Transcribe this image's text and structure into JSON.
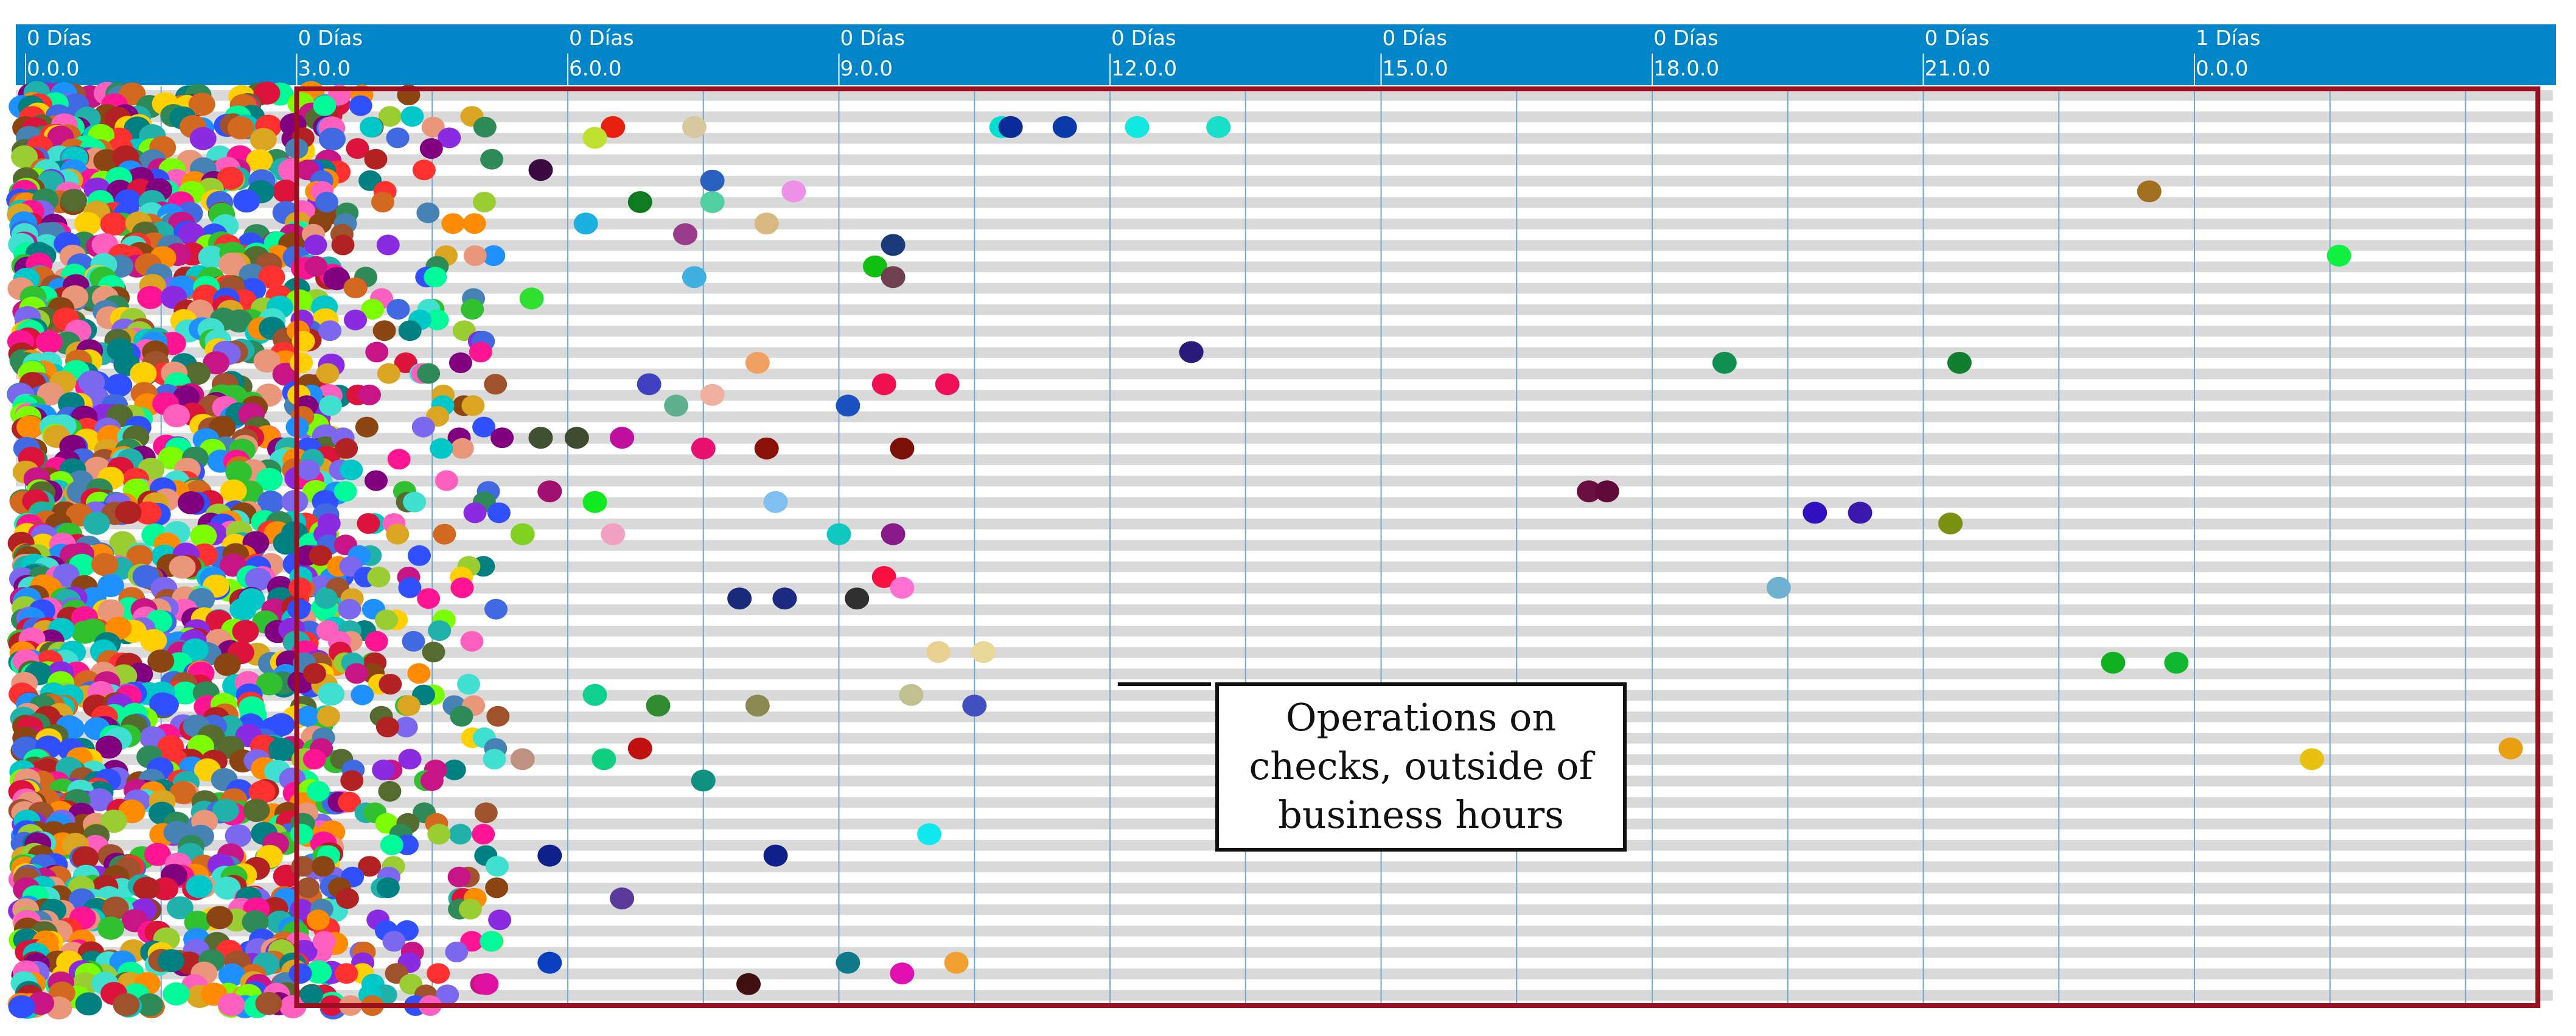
{
  "chart_data": {
    "type": "scatter",
    "title": "",
    "xlabel": "",
    "ylabel": "",
    "x_unit": "hours",
    "xlim": [
      0,
      30
    ],
    "grid": true,
    "legend": "none",
    "x_ticks": [
      {
        "value": 0,
        "day": "0 Días",
        "time": "0.0.0"
      },
      {
        "value": 3,
        "day": "0 Días",
        "time": "3.0.0"
      },
      {
        "value": 6,
        "day": "0 Días",
        "time": "6.0.0"
      },
      {
        "value": 9,
        "day": "0 Días",
        "time": "9.0.0"
      },
      {
        "value": 12,
        "day": "0 Días",
        "time": "12.0.0"
      },
      {
        "value": 15,
        "day": "0 Días",
        "time": "15.0.0"
      },
      {
        "value": 18,
        "day": "0 Días",
        "time": "18.0.0"
      },
      {
        "value": 21,
        "day": "0 Días",
        "time": "21.0.0"
      },
      {
        "value": 24,
        "day": "1 Días",
        "time": "0.0.0"
      }
    ],
    "highlight_region": {
      "from_hour": 3.0,
      "to_hour": 27.8,
      "color": "#9a1020"
    },
    "annotation": {
      "lines": [
        "Operations on",
        "checks, outside of",
        "business hours"
      ],
      "points_to_hour": 8.8
    },
    "dense_region": {
      "from_hour": 0,
      "to_hour": 3.0,
      "row_count": 62,
      "note": "operations clustered before 3.0.0"
    },
    "points": [
      {
        "hour": 10.8,
        "row": 3,
        "color": "#00e0d0"
      },
      {
        "hour": 10.9,
        "row": 3,
        "color": "#0a2a9a"
      },
      {
        "hour": 11.5,
        "row": 3,
        "color": "#0a3aa8"
      },
      {
        "hour": 12.3,
        "row": 3,
        "color": "#10e8e0"
      },
      {
        "hour": 13.2,
        "row": 3,
        "color": "#18e0c8"
      },
      {
        "hour": 5.7,
        "row": 7,
        "color": "#3a0a40"
      },
      {
        "hour": 7.6,
        "row": 8,
        "color": "#2a60c0"
      },
      {
        "hour": 8.5,
        "row": 9,
        "color": "#ee90e8"
      },
      {
        "hour": 7.3,
        "row": 13,
        "color": "#9a3a8a"
      },
      {
        "hour": 8.2,
        "row": 12,
        "color": "#d8b880"
      },
      {
        "hour": 9.6,
        "row": 14,
        "color": "#1a3a7a"
      },
      {
        "hour": 9.4,
        "row": 16,
        "color": "#10c010"
      },
      {
        "hour": 9.6,
        "row": 17,
        "color": "#704050"
      },
      {
        "hour": 23.5,
        "row": 9,
        "color": "#a07020"
      },
      {
        "hour": 25.6,
        "row": 15,
        "color": "#10f040"
      },
      {
        "hour": 12.9,
        "row": 24,
        "color": "#2a1a7a"
      },
      {
        "hour": 18.8,
        "row": 25,
        "color": "#109050"
      },
      {
        "hour": 21.4,
        "row": 25,
        "color": "#108030"
      },
      {
        "hour": 9.5,
        "row": 27,
        "color": "#f01050"
      },
      {
        "hour": 10.2,
        "row": 27,
        "color": "#f0105a"
      },
      {
        "hour": 9.1,
        "row": 29,
        "color": "#1a50c0"
      },
      {
        "hour": 8.2,
        "row": 33,
        "color": "#8a1008"
      },
      {
        "hour": 9.7,
        "row": 33,
        "color": "#7a1008"
      },
      {
        "hour": 17.3,
        "row": 37,
        "color": "#6a1040"
      },
      {
        "hour": 17.5,
        "row": 37,
        "color": "#600a3a"
      },
      {
        "hour": 19.8,
        "row": 39,
        "color": "#3010c0"
      },
      {
        "hour": 20.3,
        "row": 39,
        "color": "#3a18b0"
      },
      {
        "hour": 21.3,
        "row": 40,
        "color": "#7a9010"
      },
      {
        "hour": 8.3,
        "row": 38,
        "color": "#80c0f0"
      },
      {
        "hour": 9.0,
        "row": 41,
        "color": "#10c8c0"
      },
      {
        "hour": 9.6,
        "row": 41,
        "color": "#8a1a8a"
      },
      {
        "hour": 9.5,
        "row": 45,
        "color": "#f81040"
      },
      {
        "hour": 9.7,
        "row": 46,
        "color": "#ff70d0"
      },
      {
        "hour": 19.4,
        "row": 46,
        "color": "#70b0d0"
      },
      {
        "hour": 7.9,
        "row": 47,
        "color": "#1a2a7a"
      },
      {
        "hour": 8.4,
        "row": 47,
        "color": "#1a2a80"
      },
      {
        "hour": 9.2,
        "row": 47,
        "color": "#303030"
      },
      {
        "hour": 10.1,
        "row": 52,
        "color": "#e8d090"
      },
      {
        "hour": 10.6,
        "row": 52,
        "color": "#e8d898"
      },
      {
        "hour": 23.1,
        "row": 53,
        "color": "#10b020"
      },
      {
        "hour": 23.8,
        "row": 53,
        "color": "#10b830"
      },
      {
        "hour": 7.0,
        "row": 57,
        "color": "#308a30"
      },
      {
        "hour": 8.1,
        "row": 57,
        "color": "#8a8a50"
      },
      {
        "hour": 9.8,
        "row": 56,
        "color": "#c0c090"
      },
      {
        "hour": 10.5,
        "row": 57,
        "color": "#4050c0"
      },
      {
        "hour": 25.3,
        "row": 62,
        "color": "#e8c010"
      },
      {
        "hour": 27.5,
        "row": 61,
        "color": "#e8a010"
      },
      {
        "hour": 6.8,
        "row": 61,
        "color": "#c01010"
      },
      {
        "hour": 7.5,
        "row": 64,
        "color": "#109080"
      },
      {
        "hour": 10.0,
        "row": 69,
        "color": "#10e8f0"
      },
      {
        "hour": 5.8,
        "row": 71,
        "color": "#10208a"
      },
      {
        "hour": 8.3,
        "row": 71,
        "color": "#10208a"
      },
      {
        "hour": 6.6,
        "row": 75,
        "color": "#5a3a9a"
      },
      {
        "hour": 5.8,
        "row": 81,
        "color": "#0a40c0"
      },
      {
        "hour": 9.1,
        "row": 81,
        "color": "#107a8a"
      },
      {
        "hour": 9.7,
        "row": 82,
        "color": "#e010b0"
      },
      {
        "hour": 10.3,
        "row": 81,
        "color": "#f0a030"
      },
      {
        "hour": 5.1,
        "row": 83,
        "color": "#e010a0"
      },
      {
        "hour": 8.0,
        "row": 83,
        "color": "#401010"
      },
      {
        "hour": 7.4,
        "row": 17,
        "color": "#40b0e0"
      },
      {
        "hour": 6.2,
        "row": 12,
        "color": "#1ab0e0"
      },
      {
        "hour": 5.6,
        "row": 19,
        "color": "#30e030"
      },
      {
        "hour": 6.9,
        "row": 27,
        "color": "#4040c0"
      },
      {
        "hour": 7.6,
        "row": 28,
        "color": "#f0b0a0"
      },
      {
        "hour": 8.1,
        "row": 25,
        "color": "#f0a060"
      },
      {
        "hour": 7.2,
        "row": 29,
        "color": "#60b090"
      },
      {
        "hour": 6.6,
        "row": 32,
        "color": "#c010a0"
      },
      {
        "hour": 5.7,
        "row": 32,
        "color": "#405030"
      },
      {
        "hour": 6.1,
        "row": 32,
        "color": "#404a30"
      },
      {
        "hour": 7.5,
        "row": 33,
        "color": "#e81070"
      },
      {
        "hour": 6.5,
        "row": 41,
        "color": "#f0a0c0"
      },
      {
        "hour": 5.5,
        "row": 41,
        "color": "#80d020"
      },
      {
        "hour": 6.3,
        "row": 38,
        "color": "#10e820"
      },
      {
        "hour": 5.8,
        "row": 37,
        "color": "#a01070"
      },
      {
        "hour": 6.4,
        "row": 62,
        "color": "#10d080"
      },
      {
        "hour": 6.3,
        "row": 56,
        "color": "#10d090"
      },
      {
        "hour": 5.5,
        "row": 62,
        "color": "#c09080"
      },
      {
        "hour": 6.8,
        "row": 10,
        "color": "#107a20"
      },
      {
        "hour": 6.5,
        "row": 3,
        "color": "#e82010"
      },
      {
        "hour": 6.3,
        "row": 4,
        "color": "#c0e030"
      },
      {
        "hour": 7.4,
        "row": 3,
        "color": "#d8c8a0"
      },
      {
        "hour": 7.6,
        "row": 10,
        "color": "#50d0a0"
      }
    ]
  }
}
